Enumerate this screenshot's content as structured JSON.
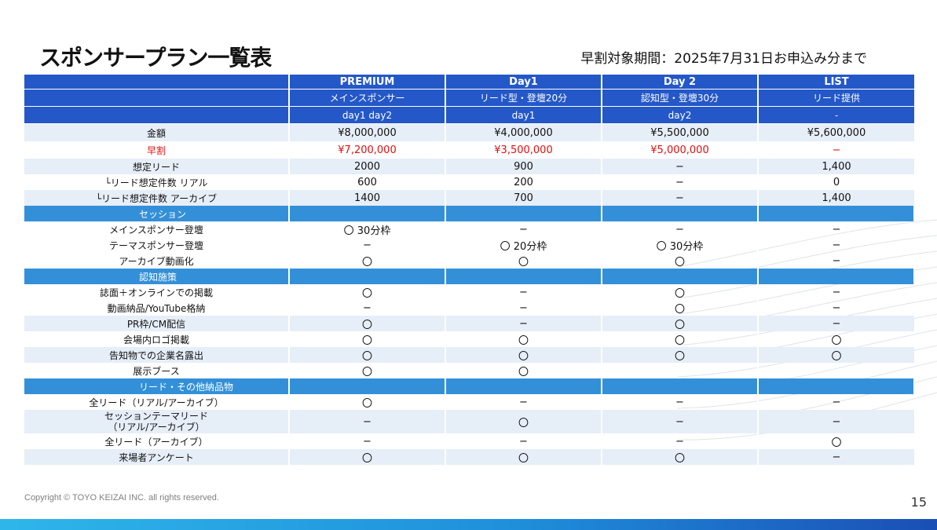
{
  "title": "スポンサープラン一覧表",
  "early_note": "早割対象期間：2025年7月31日お申込み分まで",
  "header": {
    "plans": [
      "PREMIUM",
      "Day1",
      "Day 2",
      "LIST"
    ],
    "types": [
      "メインスポンサー",
      "リード型・登壇20分",
      "認知型・登壇30分",
      "リード提供"
    ],
    "days": [
      "day1 day2",
      "day1",
      "day2",
      "-"
    ]
  },
  "rows": [
    {
      "label": "金額",
      "values": [
        "¥8,000,000",
        "¥4,000,000",
        "¥5,500,000",
        "¥5,600,000"
      ]
    },
    {
      "label": "早割",
      "values": [
        "¥7,200,000",
        "¥3,500,000",
        "¥5,000,000",
        "−"
      ]
    },
    {
      "label": "想定リード",
      "values": [
        "2000",
        "900",
        "−",
        "1,400"
      ]
    },
    {
      "label": "└リード想定件数 リアル",
      "values": [
        "600",
        "200",
        "−",
        "0"
      ]
    },
    {
      "label": "└リード想定件数 アーカイブ",
      "values": [
        "1400",
        "700",
        "−",
        "1,400"
      ]
    },
    {
      "label": "メインスポンサー登壇",
      "values": [
        "〇 30分枠",
        "−",
        "−",
        "−"
      ]
    },
    {
      "label": "テーマスポンサー登壇",
      "values": [
        "−",
        "〇 20分枠",
        "〇 30分枠",
        "−"
      ]
    },
    {
      "label": "アーカイブ動画化",
      "values": [
        "〇",
        "〇",
        "〇",
        "−"
      ]
    },
    {
      "label": "誌面＋オンラインでの掲載",
      "values": [
        "〇",
        "−",
        "〇",
        "−"
      ]
    },
    {
      "label": "動画納品/YouTube格納",
      "values": [
        "−",
        "−",
        "〇",
        "−"
      ]
    },
    {
      "label": "PR枠/CM配信",
      "values": [
        "〇",
        "−",
        "〇",
        "−"
      ]
    },
    {
      "label": "会場内ロゴ掲載",
      "values": [
        "〇",
        "〇",
        "〇",
        "〇"
      ]
    },
    {
      "label": "告知物での企業名露出",
      "values": [
        "〇",
        "〇",
        "〇",
        "〇"
      ]
    },
    {
      "label": "展示ブース",
      "values": [
        "〇",
        "〇",
        "",
        ""
      ]
    },
    {
      "label": "全リード（リアル/アーカイブ）",
      "values": [
        "〇",
        "−",
        "−",
        "−"
      ]
    },
    {
      "label_line1": "セッションテーマリード",
      "label_line2": "（リアル/アーカイブ）",
      "values": [
        "−",
        "〇",
        "−",
        "−"
      ]
    },
    {
      "label": "全リード（アーカイブ）",
      "values": [
        "−",
        "−",
        "−",
        "〇"
      ]
    },
    {
      "label": "来場者アンケート",
      "values": [
        "〇",
        "〇",
        "〇",
        "−"
      ]
    }
  ],
  "sections": [
    "セッション",
    "認知施策",
    "リード・その他納品物"
  ],
  "colors": {
    "header": "#2458c8",
    "section": "#3390d8",
    "stripe": "#e6eef8",
    "early_price": "#e01010"
  },
  "copyright": "Copyright © TOYO KEIZAI INC. all rights reserved.",
  "page_number": "15"
}
